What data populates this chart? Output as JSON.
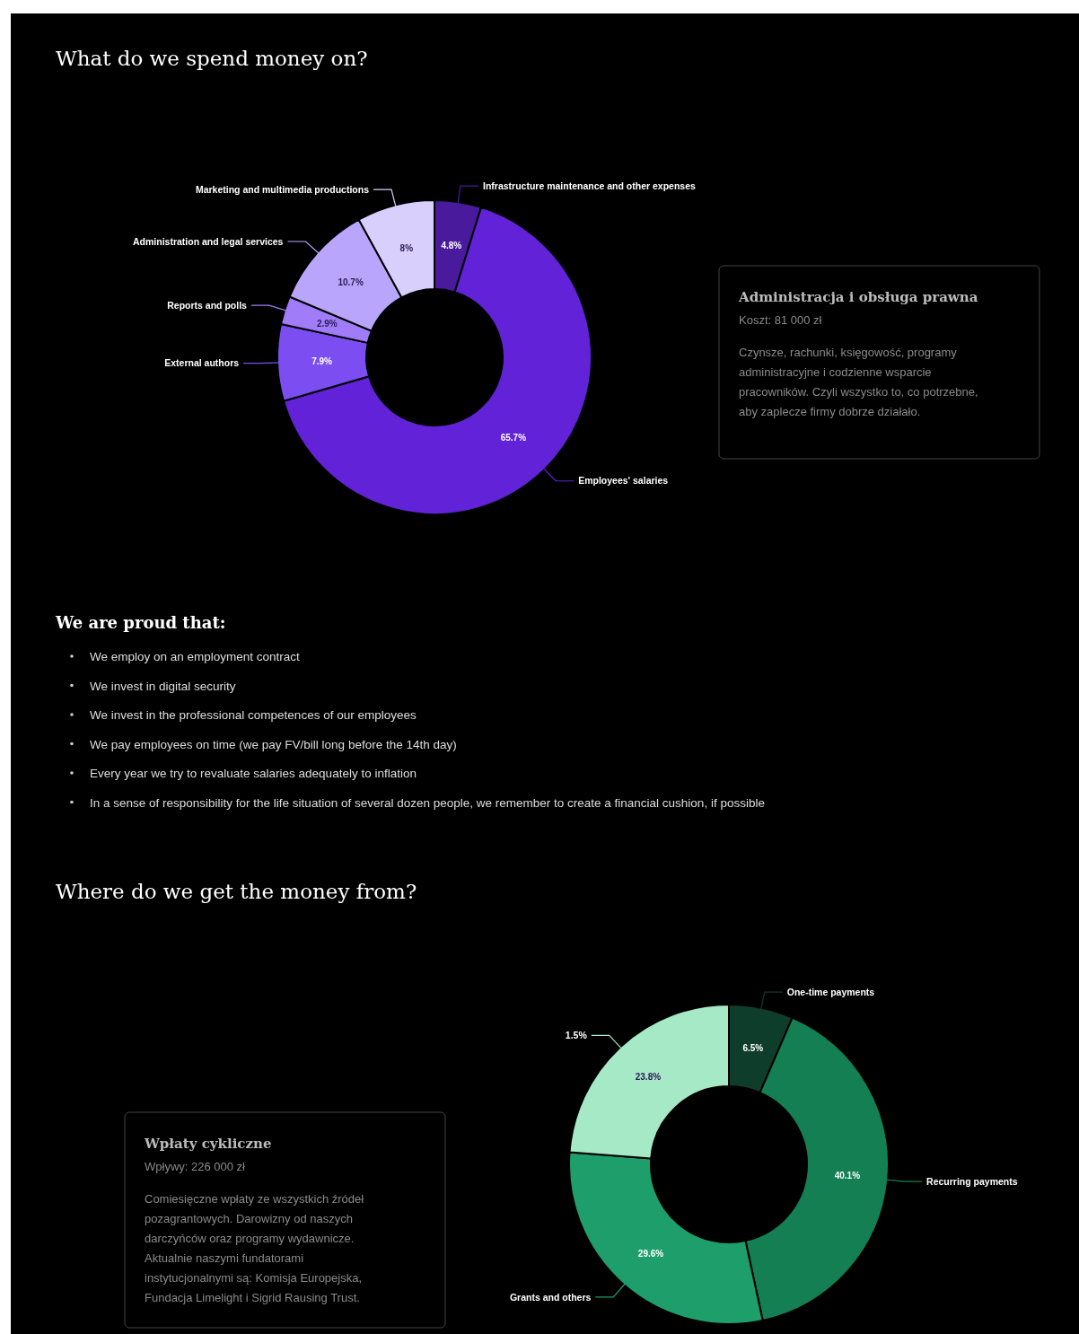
{
  "chart_data": [
    {
      "type": "donut",
      "title": "What do we spend money on?",
      "categories": [
        "Infrastructure maintenance and other expenses",
        "Employees' salaries",
        "External authors",
        "Reports and polls",
        "Administration and legal services",
        "Marketing and multimedia productions"
      ],
      "values": [
        4.8,
        65.7,
        7.9,
        2.9,
        10.7,
        8
      ],
      "colors": [
        "#4a1a9c",
        "#6222d8",
        "#7c4ef2",
        "#a07cf8",
        "#b9a6fc",
        "#d9cffd"
      ],
      "value_labels": [
        "4.8%",
        "65.7%",
        "7.9%",
        "2.9%",
        "10.7%",
        "8%"
      ],
      "annotations": [
        "Administracja i obsługa prawna",
        "Koszt: 81 000 zł",
        "Czynsze, rachunki, księgowość, programy administracyjne i codzienne wsparcie pracowników. Czyli wszystko to, co potrzebne, aby zaplecze firmy dobrze działało."
      ]
    },
    {
      "type": "other",
      "title": "We are proud that:",
      "annotations": [
        "We employ on an employment contract",
        "We invest in digital security",
        "We invest in the professional competences of our employees",
        "We pay employees on time (we pay FV/bill long before the 14th day)",
        "Every year we try to revaluate salaries adequately to inflation",
        "In a sense of responsibility for the life situation of several dozen people, we remember to create a financial cushion, if possible"
      ]
    },
    {
      "type": "donut",
      "title": "Where do we get the money from?",
      "categories": [
        "One-time payments",
        "Recurring payments",
        "Grants and others",
        "1.5%"
      ],
      "values": [
        6.5,
        40.1,
        29.6,
        23.8
      ],
      "colors": [
        "#0f3d2c",
        "#137f53",
        "#1e9e6a",
        "#a5e9c7"
      ],
      "value_labels": [
        "6.5%",
        "40.1%",
        "29.6%",
        "23.8%"
      ],
      "annotations": [
        "Wpłaty cykliczne",
        "Wpływy: 226 000 zł",
        "Comiesięczne wpłaty ze wszystkich źródeł pozagrantowych. Darowizny od naszych darczyńców oraz programy wydawnicze.",
        "Aktualnie naszymi fundatorami instytucjonalnymi są: Komisja Europejska, Fundacja Limelight i Sigrid Rausing Trust."
      ]
    }
  ]
}
